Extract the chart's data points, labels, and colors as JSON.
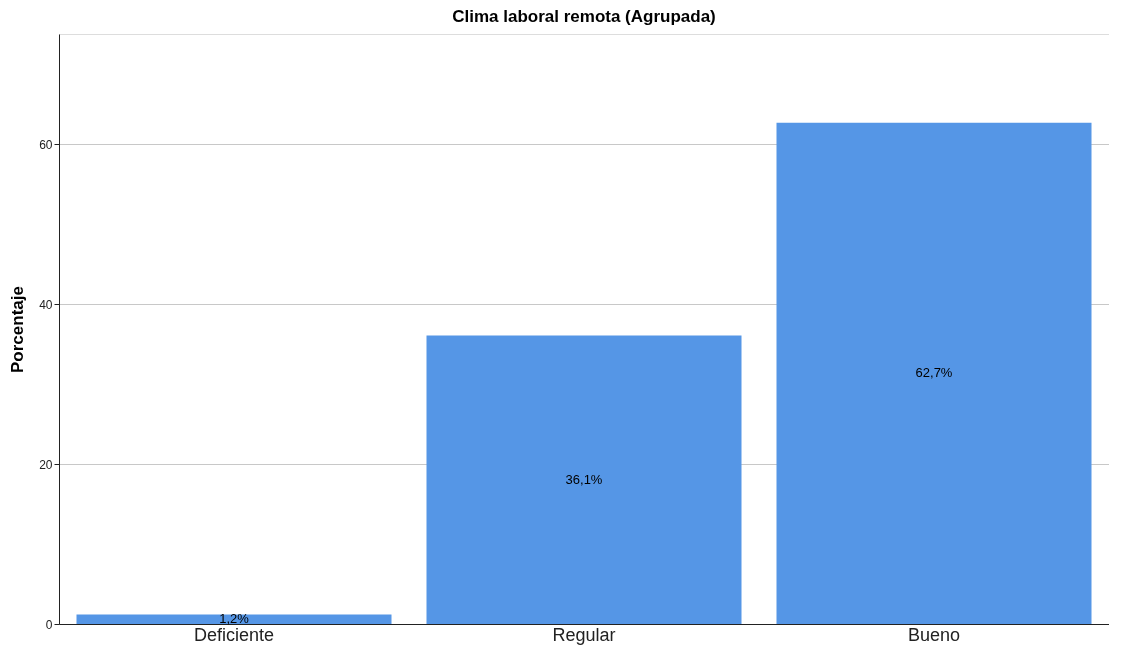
{
  "chart_data": {
    "type": "bar",
    "title": "Clima laboral remota (Agrupada)",
    "ylabel": "Porcentaje",
    "categories": [
      "Deficiente",
      "Regular",
      "Bueno"
    ],
    "values": [
      1.2,
      36.1,
      62.7
    ],
    "value_labels": [
      "1,2%",
      "36,1%",
      "62,7%"
    ],
    "color": "#5596e6",
    "ylim": [
      0,
      73.8
    ],
    "yticks": [
      0,
      20,
      40,
      60
    ],
    "grid": "y"
  }
}
